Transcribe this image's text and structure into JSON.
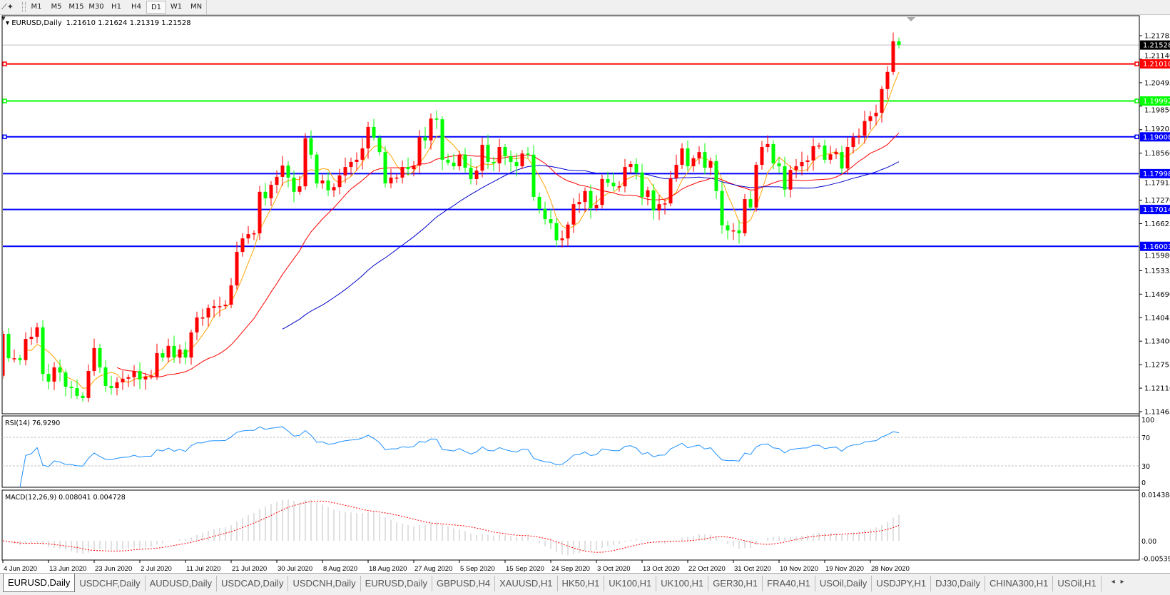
{
  "toolbar": {
    "tool_icon": "draw-line-tool-icon",
    "timeframes": [
      "M1",
      "M5",
      "M15",
      "M30",
      "H1",
      "H4",
      "D1",
      "W1",
      "MN"
    ],
    "active_timeframe": "D1"
  },
  "chart": {
    "symbol_label": "EURUSD,Daily",
    "ohlc_text": "1.21610 1.21624 1.21319 1.21528",
    "current_price": "1.21528",
    "bull_color": "#ff0000",
    "bear_color": "#00ff00",
    "ma_colors": [
      "#ffa500",
      "#ff0000",
      "#0000cd"
    ]
  },
  "price_axis": {
    "ticks": [
      "1.21785",
      "1.21140",
      "1.20495",
      "1.19850",
      "1.19205",
      "1.18560",
      "1.17915",
      "1.17270",
      "1.16625",
      "1.15980",
      "1.15335",
      "1.14690",
      "1.14045",
      "1.13400",
      "1.12755",
      "1.12110",
      "1.11465"
    ]
  },
  "levels": [
    {
      "price": "1.21010",
      "color": "#ff0000",
      "marker": true
    },
    {
      "price": "1.19992",
      "color": "#00ff00",
      "marker": true
    },
    {
      "price": "1.19008",
      "color": "#0000ff",
      "marker": true
    },
    {
      "price": "1.17998",
      "color": "#0000ff",
      "marker": false
    },
    {
      "price": "1.17014",
      "color": "#0000ff",
      "marker": false
    },
    {
      "price": "1.16003",
      "color": "#0000ff",
      "marker": false
    }
  ],
  "rsi": {
    "label": "RSI(14) 76.9290",
    "ticks": [
      "100",
      "70",
      "30",
      "0"
    ],
    "line_color": "#1e90ff"
  },
  "macd": {
    "label": "MACD(12,26,9) 0.008041 0.004728",
    "ticks": [
      "0.014384",
      "0.00",
      "-0.005396"
    ],
    "signal_color": "#ff0000",
    "histogram_color": "#c0c0c0"
  },
  "chart_data": {
    "type": "candlestick",
    "date_labels": [
      "4 Jun 2020",
      "13 Jun 2020",
      "23 Jun 2020",
      "2 Jul 2020",
      "11 Jul 2020",
      "21 Jul 2020",
      "30 Jul 2020",
      "8 Aug 2020",
      "18 Aug 2020",
      "27 Aug 2020",
      "5 Sep 2020",
      "15 Sep 2020",
      "24 Sep 2020",
      "3 Oct 2020",
      "13 Oct 2020",
      "22 Oct 2020",
      "31 Oct 2020",
      "10 Nov 2020",
      "19 Nov 2020",
      "28 Nov 2020"
    ],
    "ylim": [
      1.11465,
      1.21785
    ],
    "first_open": 1.1245,
    "closes": [
      1.136,
      1.1293,
      1.1293,
      1.1288,
      1.1346,
      1.1352,
      1.1378,
      1.125,
      1.1229,
      1.1268,
      1.1254,
      1.1215,
      1.1211,
      1.119,
      1.1184,
      1.1258,
      1.1321,
      1.1268,
      1.1217,
      1.1211,
      1.1227,
      1.1237,
      1.1241,
      1.1258,
      1.1235,
      1.1243,
      1.1243,
      1.1307,
      1.1295,
      1.1327,
      1.1295,
      1.1317,
      1.1295,
      1.1364,
      1.1405,
      1.1405,
      1.1431,
      1.1436,
      1.1436,
      1.144,
      1.1493,
      1.1585,
      1.1622,
      1.1634,
      1.1636,
      1.175,
      1.1732,
      1.1769,
      1.1791,
      1.1822,
      1.1789,
      1.175,
      1.1765,
      1.1897,
      1.1852,
      1.1773,
      1.1781,
      1.1754,
      1.1763,
      1.1795,
      1.1818,
      1.1832,
      1.1838,
      1.1869,
      1.1928,
      1.1899,
      1.1859,
      1.1773,
      1.1789,
      1.1789,
      1.1818,
      1.1812,
      1.1822,
      1.19,
      1.1891,
      1.1951,
      1.1949,
      1.1838,
      1.183,
      1.182,
      1.1852,
      1.1816,
      1.1785,
      1.1808,
      1.1879,
      1.1832,
      1.1828,
      1.1873,
      1.1848,
      1.1832,
      1.182,
      1.1855,
      1.1852,
      1.1736,
      1.1703,
      1.1675,
      1.1664,
      1.1617,
      1.1622,
      1.166,
      1.1716,
      1.1722,
      1.1752,
      1.1705,
      1.1714,
      1.1785,
      1.1775,
      1.1765,
      1.1765,
      1.1818,
      1.1826,
      1.1803,
      1.1736,
      1.1754,
      1.1699,
      1.1716,
      1.1718,
      1.1787,
      1.1824,
      1.1869,
      1.182,
      1.1842,
      1.1859,
      1.1816,
      1.1834,
      1.1752,
      1.1658,
      1.1644,
      1.1644,
      1.1636,
      1.173,
      1.1707,
      1.1824,
      1.1873,
      1.1881,
      1.1828,
      1.182,
      1.1756,
      1.181,
      1.182,
      1.1832,
      1.1836,
      1.1875,
      1.1877,
      1.1838,
      1.1853,
      1.1859,
      1.1814,
      1.1873,
      1.19,
      1.1904,
      1.1944,
      1.1957,
      1.1967,
      1.2032,
      1.2079,
      1.2163,
      1.2153
    ]
  },
  "tabs": {
    "items": [
      "EURUSD,Daily",
      "USDCHF,Daily",
      "AUDUSD,Daily",
      "USDCAD,Daily",
      "USDCNH,Daily",
      "EURUSD,Daily",
      "GBPUSD,H4",
      "XAUUSD,H1",
      "HK50,H1",
      "UK100,H1",
      "UK100,H1",
      "GER30,H1",
      "FRA40,H1",
      "USOil,Daily",
      "USDJPY,H1",
      "DJ30,Daily",
      "CHINA300,H1",
      "USOil,H1"
    ],
    "active_index": 0,
    "scroll_left_icon": "◂",
    "scroll_right_icon": "▸"
  }
}
